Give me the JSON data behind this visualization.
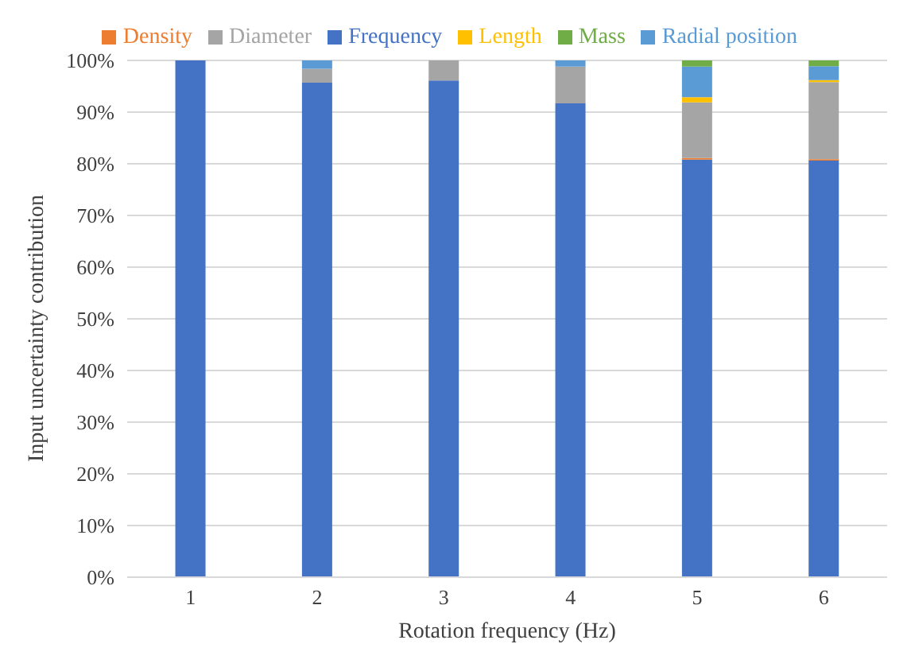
{
  "chart_data": {
    "type": "bar",
    "stacked": true,
    "xlabel": "Rotation frequency (Hz)",
    "ylabel": "Input uncertainty contribution",
    "categories": [
      "1",
      "2",
      "3",
      "4",
      "5",
      "6"
    ],
    "series": [
      {
        "name": "Frequency",
        "color": "#4472c4",
        "values": [
          100,
          95.7,
          96.1,
          91.7,
          80.8,
          80.6
        ]
      },
      {
        "name": "Density",
        "color": "#ed7d31",
        "values": [
          0,
          0,
          0,
          0,
          0.3,
          0.3
        ]
      },
      {
        "name": "Diameter",
        "color": "#a5a5a5",
        "values": [
          0,
          2.7,
          3.9,
          7.1,
          10.8,
          14.9
        ]
      },
      {
        "name": "Length",
        "color": "#ffc000",
        "values": [
          0,
          0,
          0,
          0,
          1.0,
          0.4
        ]
      },
      {
        "name": "Radial position",
        "color": "#5b9bd5",
        "values": [
          0,
          1.6,
          0,
          1.2,
          5.9,
          2.7
        ]
      },
      {
        "name": "Mass",
        "color": "#70ad47",
        "values": [
          0,
          0,
          0,
          0,
          1.2,
          1.1
        ]
      }
    ],
    "ylim": [
      0,
      100
    ],
    "yticks": [
      {
        "value": 0,
        "label": "0%"
      },
      {
        "value": 10,
        "label": "10%"
      },
      {
        "value": 20,
        "label": "20%"
      },
      {
        "value": 30,
        "label": "30%"
      },
      {
        "value": 40,
        "label": "40%"
      },
      {
        "value": 50,
        "label": "50%"
      },
      {
        "value": 60,
        "label": "60%"
      },
      {
        "value": 70,
        "label": "70%"
      },
      {
        "value": 80,
        "label": "80%"
      },
      {
        "value": 90,
        "label": "90%"
      },
      {
        "value": 100,
        "label": "100%"
      }
    ],
    "grid": "y",
    "legend": "top"
  }
}
